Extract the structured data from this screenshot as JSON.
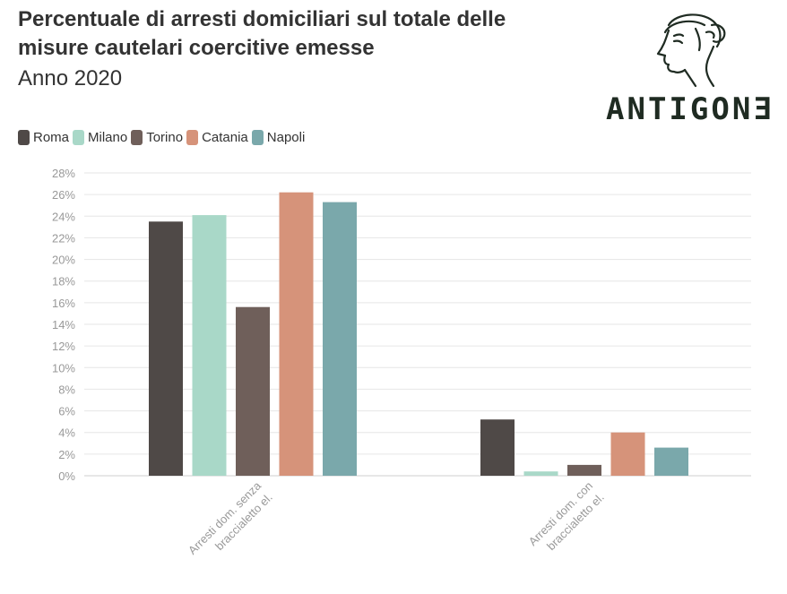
{
  "header": {
    "title": "Percentuale di arresti domiciliari sul totale delle misure cautelari coercitive emesse",
    "subtitle": "Anno 2020"
  },
  "logo": {
    "text": "ANTIGONƎ",
    "icon": "antigone-head-icon"
  },
  "colors": {
    "Roma": "#4f4947",
    "Milano": "#a9d8c8",
    "Torino": "#6f5f5a",
    "Catania": "#d6937a",
    "Napoli": "#7aa8ab"
  },
  "chart_data": {
    "type": "bar",
    "title": "Percentuale di arresti domiciliari sul totale delle misure cautelari coercitive emesse",
    "subtitle": "Anno 2020",
    "categories": [
      "Arresti dom. senza braccialetto el.",
      "Arresti dom. con braccialetto el."
    ],
    "category_lines": [
      [
        "Arresti dom. senza",
        "braccialetto el."
      ],
      [
        "Arresti dom. con",
        "braccialetto el."
      ]
    ],
    "series": [
      {
        "name": "Roma",
        "values": [
          23.5,
          5.2
        ]
      },
      {
        "name": "Milano",
        "values": [
          24.1,
          0.4
        ]
      },
      {
        "name": "Torino",
        "values": [
          15.6,
          1.0
        ]
      },
      {
        "name": "Catania",
        "values": [
          26.2,
          4.0
        ]
      },
      {
        "name": "Napoli",
        "values": [
          25.3,
          2.6
        ]
      }
    ],
    "ylim": [
      0,
      28
    ],
    "yticks": [
      "0%",
      "2%",
      "4%",
      "6%",
      "8%",
      "10%",
      "12%",
      "14%",
      "16%",
      "18%",
      "20%",
      "22%",
      "24%",
      "26%",
      "28%"
    ],
    "xlabel": "",
    "ylabel": "",
    "grid": true,
    "legend": "top-left"
  }
}
